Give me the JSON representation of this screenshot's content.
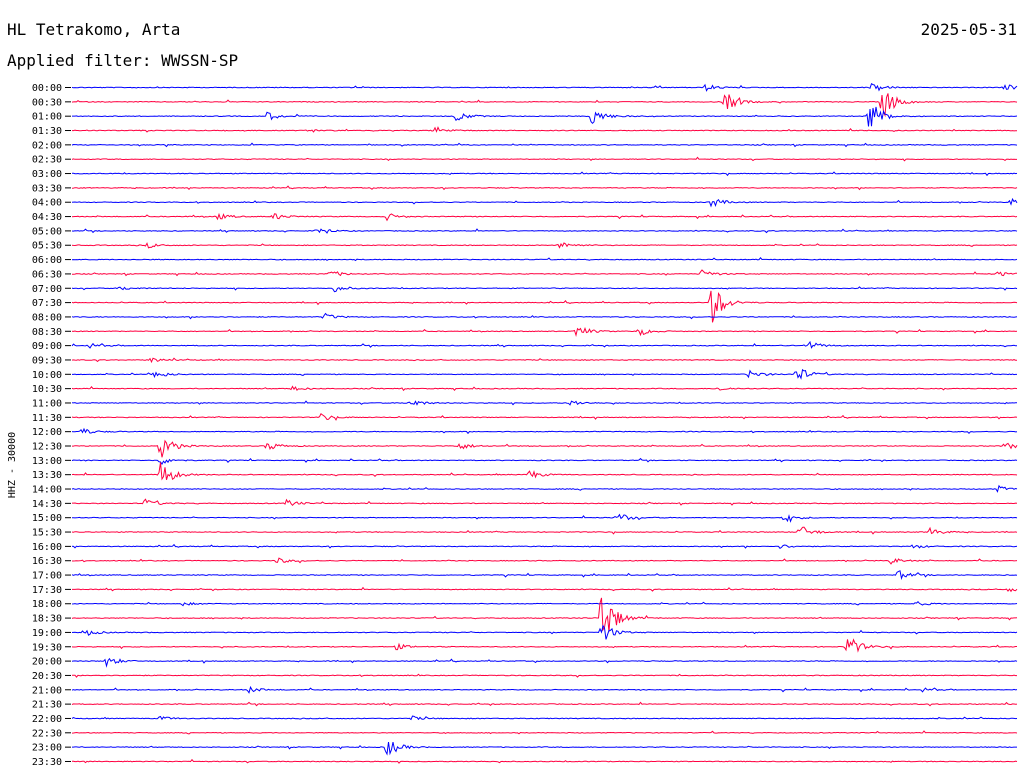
{
  "header": {
    "station": "HL Tetrakomo, Arta",
    "date": "2025-05-31",
    "filter": "Applied filter: WWSSN-SP"
  },
  "colors": {
    "even_line": "#0000ff",
    "odd_line": "#ff0040"
  },
  "chart_data": {
    "type": "line",
    "title": "HL Tetrakomo, Arta",
    "ylabel": "HHZ - 30000",
    "rows": [
      "00:00",
      "00:30",
      "01:00",
      "01:30",
      "02:00",
      "02:30",
      "03:00",
      "03:30",
      "04:00",
      "04:30",
      "05:00",
      "05:30",
      "06:00",
      "06:30",
      "07:00",
      "07:30",
      "08:00",
      "08:30",
      "09:00",
      "09:30",
      "10:00",
      "10:30",
      "11:00",
      "11:30",
      "12:00",
      "12:30",
      "13:00",
      "13:30",
      "14:00",
      "14:30",
      "15:00",
      "15:30",
      "16:00",
      "16:30",
      "17:00",
      "17:30",
      "18:00",
      "18:30",
      "19:00",
      "19:30",
      "20:00",
      "20:30",
      "21:00",
      "21:30",
      "22:00",
      "22:30",
      "23:00",
      "23:30"
    ],
    "x_range_minutes": [
      0,
      30
    ],
    "events": [
      {
        "row": 0,
        "t": 25.4,
        "amp": 1.2
      },
      {
        "row": 0,
        "t": 20.1,
        "amp": 0.8
      },
      {
        "row": 0,
        "t": 29.6,
        "amp": 0.8
      },
      {
        "row": 1,
        "t": 20.7,
        "amp": 2.6
      },
      {
        "row": 1,
        "t": 25.7,
        "amp": 4.5
      },
      {
        "row": 2,
        "t": 6.2,
        "amp": 1.0
      },
      {
        "row": 2,
        "t": 12.2,
        "amp": 1.1
      },
      {
        "row": 2,
        "t": 16.5,
        "amp": 2.2
      },
      {
        "row": 2,
        "t": 25.3,
        "amp": 4.5
      },
      {
        "row": 3,
        "t": 11.5,
        "amp": 1.0
      },
      {
        "row": 3,
        "t": 7.5,
        "amp": 0.4
      },
      {
        "row": 8,
        "t": 20.3,
        "amp": 1.1
      },
      {
        "row": 8,
        "t": 29.8,
        "amp": 0.8
      },
      {
        "row": 9,
        "t": 4.6,
        "amp": 0.8
      },
      {
        "row": 9,
        "t": 6.4,
        "amp": 0.8
      },
      {
        "row": 9,
        "t": 10.0,
        "amp": 0.8
      },
      {
        "row": 10,
        "t": 7.8,
        "amp": 0.8
      },
      {
        "row": 11,
        "t": 2.4,
        "amp": 0.6
      },
      {
        "row": 11,
        "t": 15.5,
        "amp": 1.0
      },
      {
        "row": 13,
        "t": 8.2,
        "amp": 0.8
      },
      {
        "row": 13,
        "t": 20.0,
        "amp": 1.0
      },
      {
        "row": 13,
        "t": 29.4,
        "amp": 0.6
      },
      {
        "row": 14,
        "t": 8.3,
        "amp": 0.8
      },
      {
        "row": 14,
        "t": 1.5,
        "amp": 0.5
      },
      {
        "row": 15,
        "t": 20.3,
        "amp": 5.0
      },
      {
        "row": 16,
        "t": 8.0,
        "amp": 0.8
      },
      {
        "row": 17,
        "t": 16.0,
        "amp": 1.6
      },
      {
        "row": 17,
        "t": 18.0,
        "amp": 1.0
      },
      {
        "row": 18,
        "t": 0.5,
        "amp": 0.6
      },
      {
        "row": 18,
        "t": 23.3,
        "amp": 1.3
      },
      {
        "row": 19,
        "t": 2.5,
        "amp": 0.6
      },
      {
        "row": 20,
        "t": 2.6,
        "amp": 1.0
      },
      {
        "row": 20,
        "t": 23.0,
        "amp": 2.0
      },
      {
        "row": 20,
        "t": 21.5,
        "amp": 1.0
      },
      {
        "row": 21,
        "t": 7.0,
        "amp": 0.5
      },
      {
        "row": 21,
        "t": 20.5,
        "amp": 0.5
      },
      {
        "row": 22,
        "t": 10.7,
        "amp": 1.1
      },
      {
        "row": 22,
        "t": 15.8,
        "amp": 0.8
      },
      {
        "row": 23,
        "t": 7.9,
        "amp": 0.9
      },
      {
        "row": 24,
        "t": 0.3,
        "amp": 0.8
      },
      {
        "row": 25,
        "t": 2.8,
        "amp": 3.2
      },
      {
        "row": 25,
        "t": 6.2,
        "amp": 1.1
      },
      {
        "row": 25,
        "t": 12.3,
        "amp": 0.8
      },
      {
        "row": 25,
        "t": 29.6,
        "amp": 0.9
      },
      {
        "row": 26,
        "t": 2.8,
        "amp": 1.0
      },
      {
        "row": 27,
        "t": 2.8,
        "amp": 3.5
      },
      {
        "row": 27,
        "t": 14.5,
        "amp": 1.1
      },
      {
        "row": 28,
        "t": 29.4,
        "amp": 0.7
      },
      {
        "row": 29,
        "t": 2.3,
        "amp": 1.0
      },
      {
        "row": 29,
        "t": 6.8,
        "amp": 0.9
      },
      {
        "row": 30,
        "t": 17.3,
        "amp": 1.3
      },
      {
        "row": 30,
        "t": 22.6,
        "amp": 1.0
      },
      {
        "row": 31,
        "t": 23.1,
        "amp": 1.6
      },
      {
        "row": 31,
        "t": 27.2,
        "amp": 1.0
      },
      {
        "row": 32,
        "t": 22.5,
        "amp": 0.5
      },
      {
        "row": 32,
        "t": 26.7,
        "amp": 0.5
      },
      {
        "row": 33,
        "t": 6.5,
        "amp": 0.7
      },
      {
        "row": 33,
        "t": 26.0,
        "amp": 0.7
      },
      {
        "row": 34,
        "t": 26.2,
        "amp": 1.2
      },
      {
        "row": 35,
        "t": 29.7,
        "amp": 0.5
      },
      {
        "row": 36,
        "t": 3.5,
        "amp": 0.4
      },
      {
        "row": 36,
        "t": 26.8,
        "amp": 0.5
      },
      {
        "row": 37,
        "t": 16.8,
        "amp": 8.0
      },
      {
        "row": 38,
        "t": 16.8,
        "amp": 2.5
      },
      {
        "row": 38,
        "t": 0.5,
        "amp": 0.6
      },
      {
        "row": 39,
        "t": 24.6,
        "amp": 3.0
      },
      {
        "row": 39,
        "t": 10.3,
        "amp": 0.7
      },
      {
        "row": 40,
        "t": 1.1,
        "amp": 1.2
      },
      {
        "row": 42,
        "t": 5.6,
        "amp": 0.7
      },
      {
        "row": 42,
        "t": 27.0,
        "amp": 0.4
      },
      {
        "row": 44,
        "t": 2.8,
        "amp": 0.5
      },
      {
        "row": 44,
        "t": 10.8,
        "amp": 0.5
      },
      {
        "row": 46,
        "t": 10.0,
        "amp": 2.2
      }
    ]
  }
}
